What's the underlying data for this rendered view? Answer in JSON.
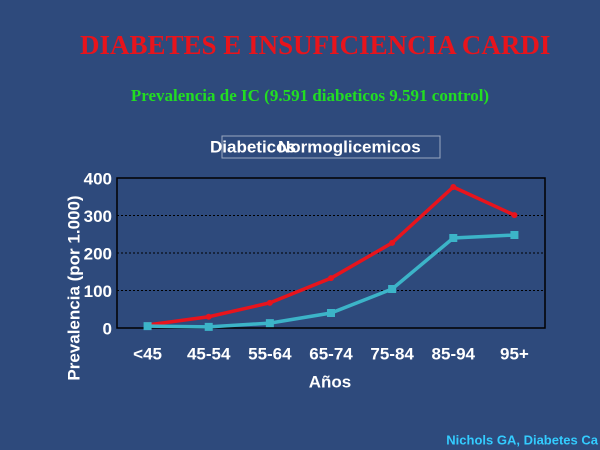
{
  "chart_data": {
    "type": "line",
    "title": "DIABETES E INSUFICIENCIA CARDI",
    "subtitle": "Prevalencia de IC (9.591 diabeticos 9.591 control)",
    "x_label": "Años",
    "y_label": "Prevalencia (por 1.000)",
    "source": "Nichols GA, Diabetes Ca",
    "categories": [
      "<45",
      "45-54",
      "55-64",
      "65-74",
      "75-84",
      "85-94",
      "95+"
    ],
    "series": [
      {
        "name": "Diabeticos",
        "color": "#e8141c",
        "values": [
          8,
          30,
          67,
          133,
          227,
          376,
          301
        ]
      },
      {
        "name": "Normoglicemicos",
        "color": "#3cb4c8",
        "values": [
          5,
          3,
          13,
          40,
          104,
          240,
          248
        ]
      }
    ],
    "ylim": [
      0,
      400
    ],
    "yticks": [
      0,
      100,
      200,
      300,
      400
    ],
    "grid": true
  }
}
